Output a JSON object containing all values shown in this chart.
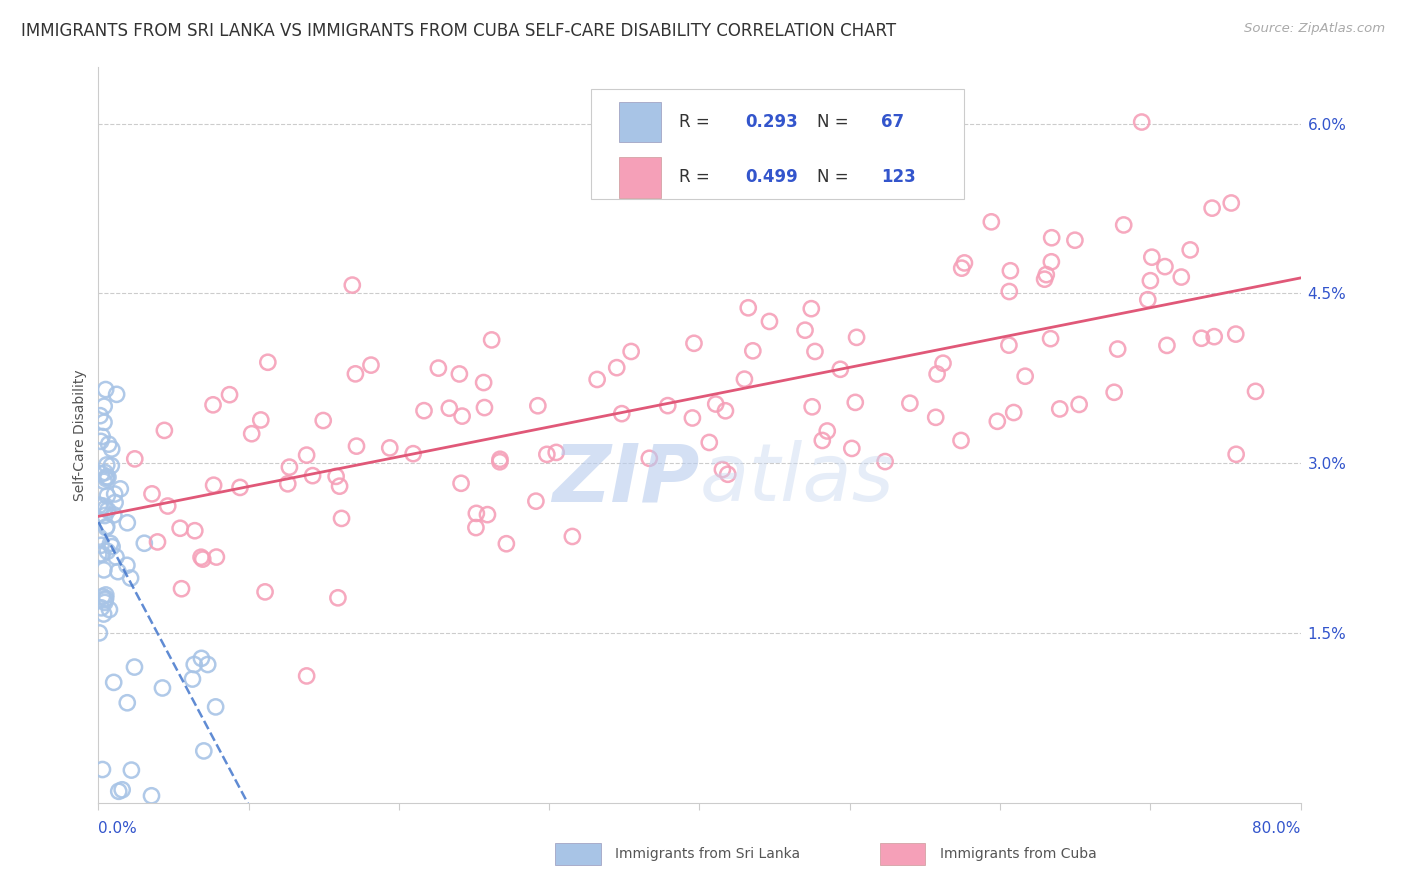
{
  "title": "IMMIGRANTS FROM SRI LANKA VS IMMIGRANTS FROM CUBA SELF-CARE DISABILITY CORRELATION CHART",
  "source": "Source: ZipAtlas.com",
  "ylabel": "Self-Care Disability",
  "xmin": 0.0,
  "xmax": 80.0,
  "ymin": 0.0,
  "ymax": 6.5,
  "sri_lanka_R": 0.293,
  "sri_lanka_N": 67,
  "cuba_R": 0.499,
  "cuba_N": 123,
  "sri_lanka_color": "#a8c4e6",
  "cuba_color": "#f5a0b8",
  "sri_lanka_line_color": "#4477cc",
  "cuba_line_color": "#e05878",
  "legend_box_color_sl": "#a8c4e6",
  "legend_box_color_cu": "#f5a0b8",
  "R_N_color": "#3355cc",
  "watermark_color": "#ccd8ee",
  "bg_color": "#ffffff",
  "grid_color": "#cccccc",
  "title_fontsize": 12,
  "axis_label_fontsize": 10,
  "tick_fontsize": 11,
  "legend_fontsize": 12
}
